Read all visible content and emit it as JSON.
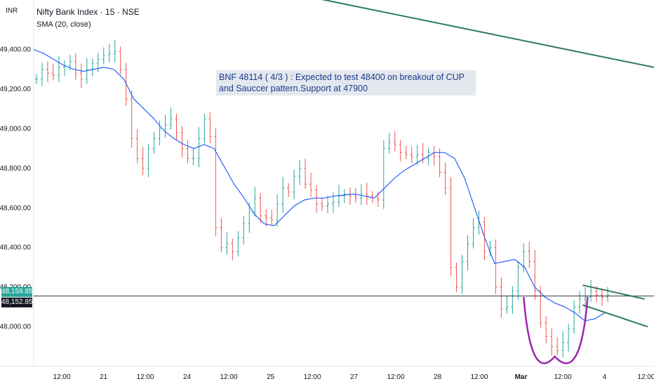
{
  "header": {
    "currency": "INR",
    "title": "Nifty Bank Index · 15 · NSE",
    "indicator": "SMA (20, close)"
  },
  "note": {
    "text": "BNF 48114 ( 4/3 ) : Expected to test 48400 on breakout of CUP and Sauccer pattern.Support at 47900"
  },
  "price_tags": {
    "last": "48,159.85",
    "sma": "48,152.85"
  },
  "colors": {
    "up": "#26a69a",
    "down": "#ef5350",
    "sma": "#2962ff",
    "trendline": "#2e7d5b",
    "cup": "#9c27b0",
    "last_tag": "#26a69a",
    "sma_tag": "#131722"
  },
  "chart_data": {
    "type": "ohlc",
    "ylim": [
      47800,
      49650
    ],
    "y_ticks": [
      48000,
      48200,
      48400,
      48600,
      48800,
      49000,
      49200,
      49400
    ],
    "y_tick_labels": [
      "48,000.00",
      "48,200.00",
      "48,400.00",
      "48,600.00",
      "48,800.00",
      "49,000.00",
      "49,200.00",
      "49,400.00"
    ],
    "x_ticks": [
      "12:00",
      "21",
      "12:00",
      "24",
      "12:00",
      "25",
      "12:00",
      "27",
      "12:00",
      "28",
      "12:00",
      "Mar",
      "12:00",
      "4",
      "12:00"
    ],
    "horizontal_line": 48155,
    "close_path": [
      49250,
      49300,
      49280,
      49270,
      49310,
      49320,
      49340,
      49280,
      49250,
      49300,
      49330,
      49350,
      49370,
      49380,
      49390,
      49300,
      49150,
      48950,
      48850,
      48800,
      48900,
      48950,
      49000,
      49020,
      49050,
      48980,
      48900,
      48850,
      48850,
      48950,
      49050,
      48960,
      48500,
      48400,
      48420,
      48380,
      48450,
      48520,
      48580,
      48650,
      48560,
      48550,
      48540,
      48620,
      48700,
      48680,
      48760,
      48800,
      48720,
      48690,
      48620,
      48610,
      48620,
      48630,
      48660,
      48670,
      48660,
      48650,
      48670,
      48660,
      48650,
      48640,
      48900,
      48930,
      48920,
      48880,
      48870,
      48860,
      48870,
      48850,
      48880,
      48860,
      48780,
      48700,
      48300,
      48200,
      48330,
      48420,
      48500,
      48530,
      48380,
      48400,
      48200,
      48090,
      48100,
      48180,
      48300,
      48380,
      48330,
      48180,
      48020,
      47950,
      47900,
      47880,
      47920,
      47990,
      48100,
      48140,
      48150,
      48180,
      48160,
      48150,
      48160
    ],
    "sma_path": [
      49400,
      49380,
      49350,
      49320,
      49300,
      49290,
      49300,
      49310,
      49300,
      49250,
      49150,
      49100,
      49050,
      48990,
      48950,
      48920,
      48900,
      48920,
      48900,
      48810,
      48720,
      48650,
      48570,
      48520,
      48510,
      48560,
      48610,
      48640,
      48650,
      48650,
      48660,
      48665,
      48670,
      48660,
      48650,
      48700,
      48750,
      48790,
      48820,
      48850,
      48880,
      48880,
      48850,
      48750,
      48600,
      48450,
      48320,
      48330,
      48340,
      48300,
      48200,
      48150,
      48120,
      48100,
      48070,
      48030,
      48040,
      48070
    ],
    "trendlines": [
      {
        "from": [
          0.36,
          49720
        ],
        "to": [
          1.0,
          49310
        ]
      },
      {
        "from": [
          0.885,
          48210
        ],
        "to": [
          0.985,
          48140
        ]
      },
      {
        "from": [
          0.885,
          48110
        ],
        "to": [
          0.99,
          48000
        ]
      }
    ],
    "cup": {
      "from": [
        0.79,
        48150
      ],
      "bottom": [
        0.84,
        47850
      ],
      "to": [
        0.893,
        48150
      ]
    }
  }
}
